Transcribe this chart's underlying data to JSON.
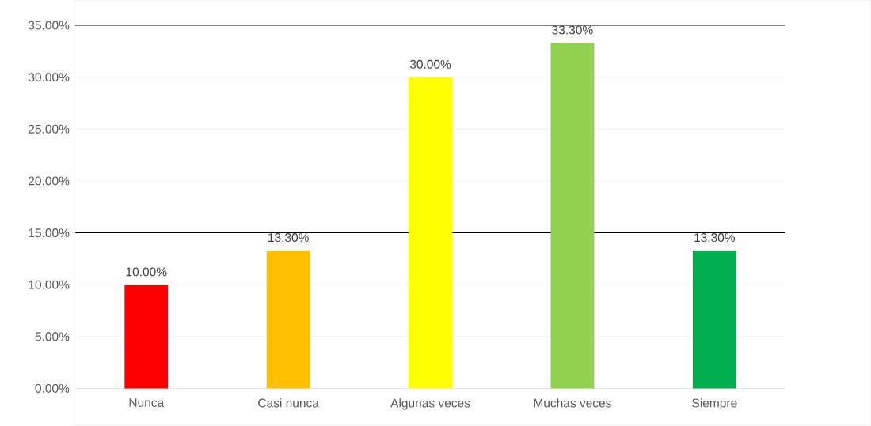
{
  "chart_data": {
    "type": "bar",
    "categories": [
      "Nunca",
      "Casi nunca",
      "Algunas veces",
      "Muchas veces",
      "Siempre"
    ],
    "values": [
      10.0,
      13.3,
      30.0,
      33.3,
      13.3
    ],
    "colors": [
      "#ff0000",
      "#ffc000",
      "#ffff00",
      "#92d050",
      "#00b050"
    ],
    "value_labels": [
      "10.00%",
      "13.30%",
      "30.00%",
      "33.30%",
      "13.30%"
    ],
    "ylim": [
      0,
      35
    ],
    "yticks": [
      {
        "value": 0,
        "label": "0.00%"
      },
      {
        "value": 5,
        "label": "5.00%"
      },
      {
        "value": 10,
        "label": "10.00%"
      },
      {
        "value": 15,
        "label": "15.00%"
      },
      {
        "value": 20,
        "label": "20.00%"
      },
      {
        "value": 25,
        "label": "25.00%"
      },
      {
        "value": 30,
        "label": "30.00%"
      },
      {
        "value": 35,
        "label": "35.00%"
      }
    ],
    "grid": "y",
    "ref_lines": [
      {
        "axis": "y",
        "value": 35,
        "color": "#000000"
      },
      {
        "axis": "y",
        "value": 15,
        "color": "#000000"
      }
    ]
  }
}
